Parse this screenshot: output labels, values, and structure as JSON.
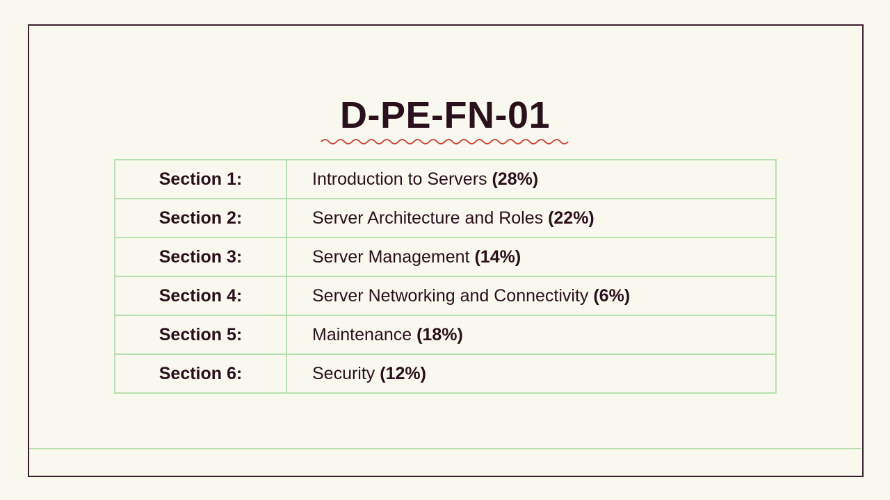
{
  "header": {
    "title": "D-PE-FN-01"
  },
  "table": {
    "rows": [
      [
        "Section 1:",
        "Introduction to Servers",
        "(28%)"
      ],
      [
        "Section 2:",
        "Server Architecture and Roles",
        "(22%)"
      ],
      [
        "Section 3:",
        "Server Management",
        "(14%)"
      ],
      [
        "Section 4:",
        "Server Networking and Connectivity",
        "(6%)"
      ],
      [
        "Section 5:",
        "Maintenance",
        "(18%)"
      ],
      [
        "Section 6:",
        "Security",
        "(12%)"
      ]
    ]
  }
}
